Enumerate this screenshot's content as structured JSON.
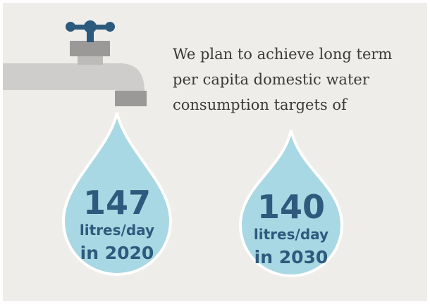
{
  "intro": {
    "lines": [
      "We plan to achieve long term",
      "per capita domestic water",
      "consumption targets of"
    ]
  },
  "targets": [
    {
      "value": 147,
      "unit": "litres/day",
      "period": "in 2020"
    },
    {
      "value": 140,
      "unit": "litres/day",
      "period": "in 2030"
    }
  ]
}
